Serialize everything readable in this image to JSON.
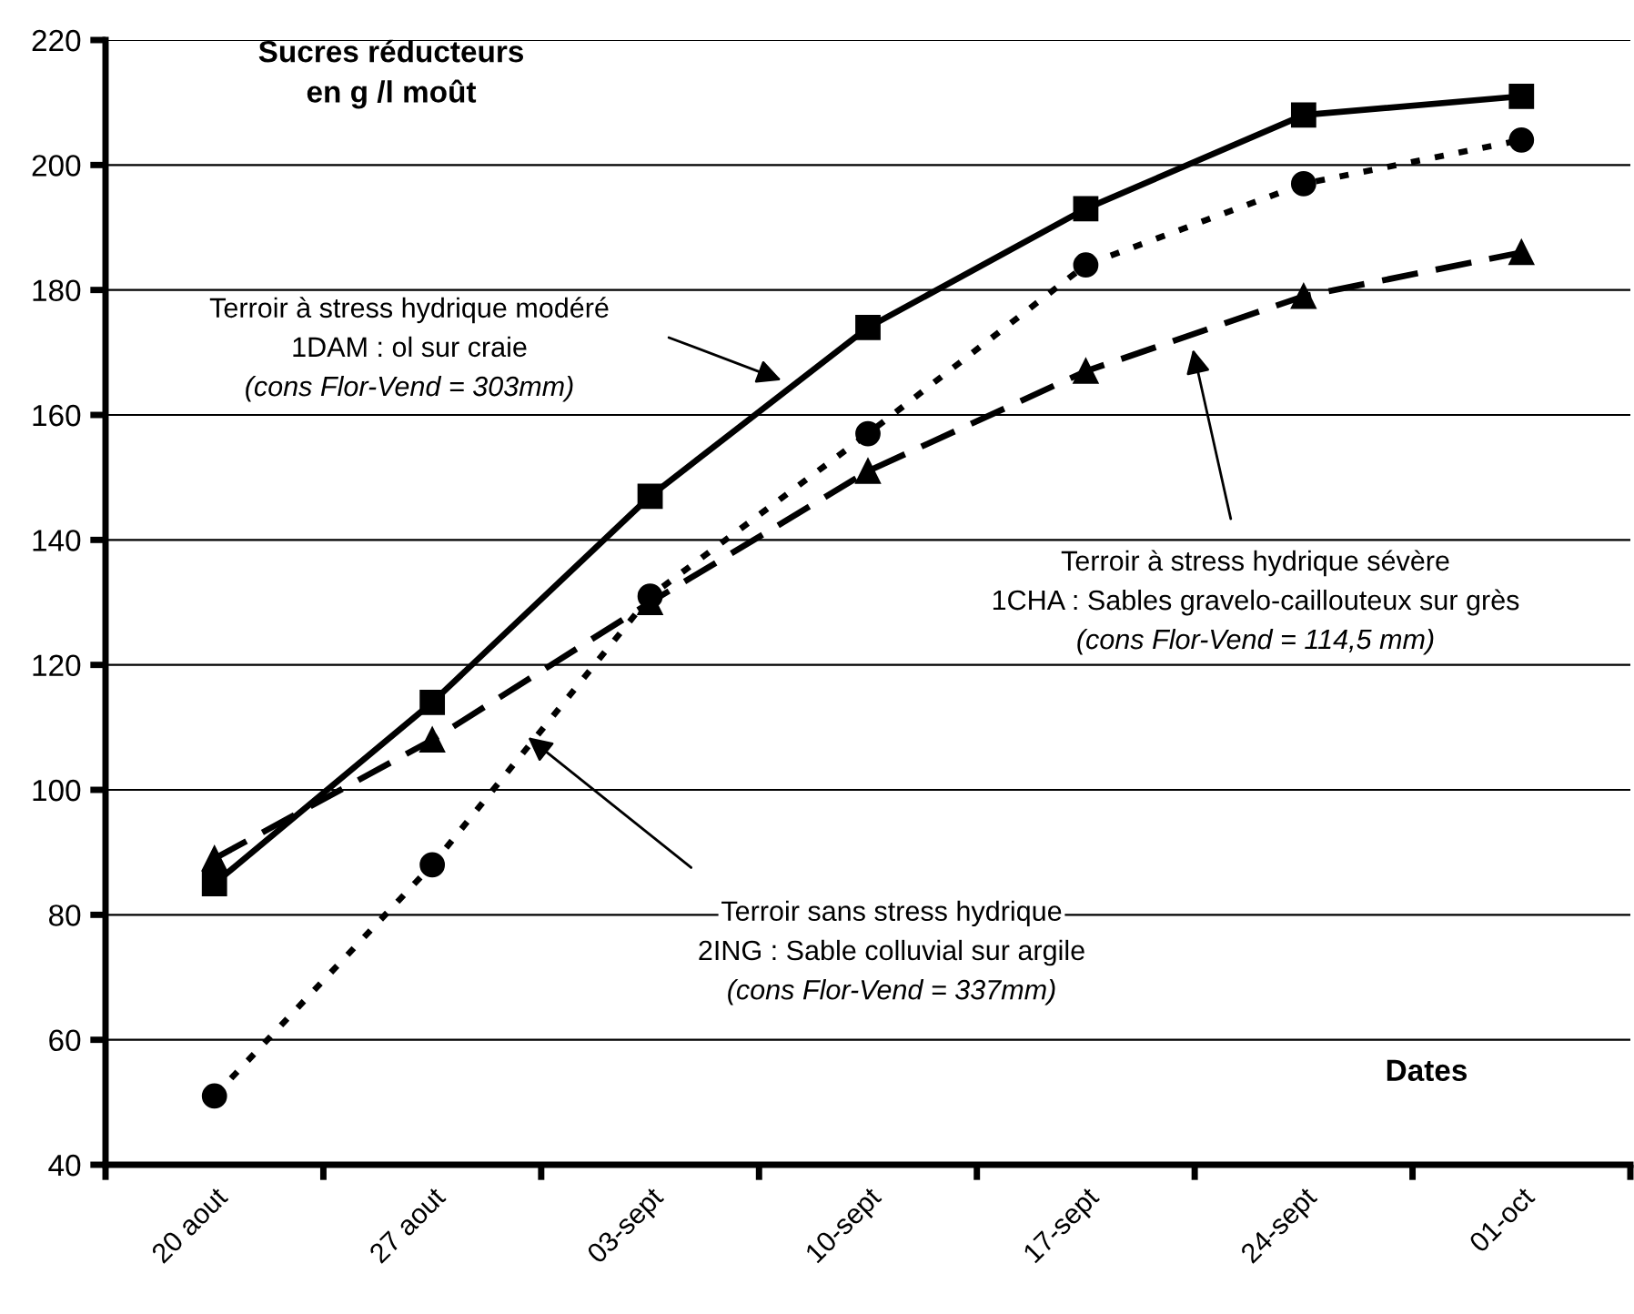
{
  "chart_data": {
    "type": "line",
    "ylabel": "Sucres réducteurs\nen g /l moût",
    "xlabel": "Dates",
    "categories": [
      "20 aout",
      "27 aout",
      "03-sept",
      "10-sept",
      "17-sept",
      "24-sept",
      "01-oct"
    ],
    "series": [
      {
        "color": "#000000",
        "marker": "square",
        "line_style": "solid",
        "values": [
          85,
          114,
          147,
          174,
          193,
          208,
          211
        ]
      },
      {
        "color": "#000000",
        "marker": "circle",
        "line_style": "dotted",
        "values": [
          51,
          88,
          131,
          157,
          184,
          197,
          204
        ]
      },
      {
        "color": "#000000",
        "marker": "triangle",
        "line_style": "dashed",
        "values": [
          89,
          108,
          130,
          151,
          167,
          179,
          186
        ]
      }
    ],
    "ylim": [
      40,
      220
    ],
    "yticks": [
      40,
      60,
      80,
      100,
      120,
      140,
      160,
      180,
      200,
      220
    ],
    "grid": "y",
    "legend": false,
    "annotations": [
      "Terroir à stress hydrique modéré\n1DAM : ol sur craie\n(cons Flor-Vend = 303mm)",
      "Terroir à stress hydrique sévère\n1CHA : Sables gravelo-caillouteux sur grès\n(cons Flor-Vend = 114,5 mm)",
      "Terroir sans stress hydrique\n2ING : Sable colluvial sur argile\n(cons Flor-Vend = 337mm)"
    ]
  }
}
